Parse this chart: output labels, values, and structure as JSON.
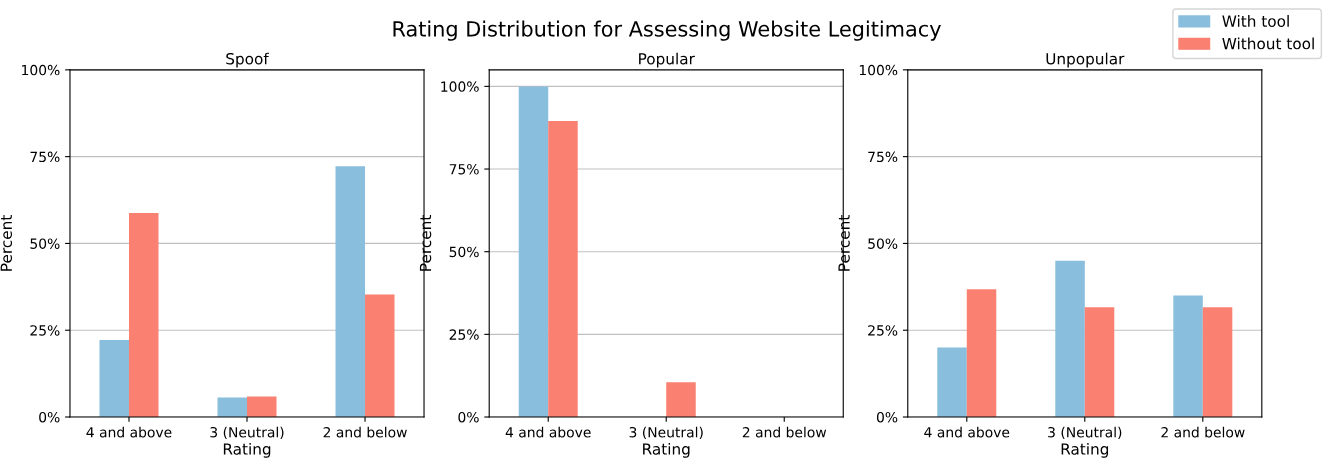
{
  "chart_data": [
    {
      "type": "bar",
      "title": "Spoof",
      "xlabel": "Rating",
      "ylabel": "Percent",
      "annotations": [
        "Rating Distribution for Assessing Website Legitimacy"
      ],
      "legend": "top right",
      "grid": "y",
      "categories": [
        "4 and above",
        "3 (Neutral)",
        "2 and below"
      ],
      "series": [
        {
          "name": "With tool",
          "color": "#89bedc",
          "values": [
            22.2,
            5.6,
            72.2
          ]
        },
        {
          "name": "Without tool",
          "color": "#fa8072",
          "values": [
            58.8,
            5.9,
            35.3
          ]
        }
      ],
      "ylim": [
        0,
        100
      ],
      "yticks": [
        {
          "value": 0,
          "label": "0%"
        },
        {
          "value": 25,
          "label": "25%"
        },
        {
          "value": 50,
          "label": "50%"
        },
        {
          "value": 75,
          "label": "75%"
        },
        {
          "value": 100,
          "label": "100%"
        }
      ]
    },
    {
      "type": "bar",
      "title": "Popular",
      "xlabel": "Rating",
      "ylabel": "Percent",
      "grid": "y",
      "categories": [
        "4 and above",
        "3 (Neutral)",
        "2 and below"
      ],
      "series": [
        {
          "color": "#89bedc",
          "values": [
            100,
            0,
            0
          ]
        },
        {
          "color": "#fa8072",
          "values": [
            89.5,
            10.5,
            0
          ]
        }
      ],
      "ylim": [
        0,
        105
      ],
      "yticks": [
        {
          "value": 0,
          "label": "0%"
        },
        {
          "value": 25,
          "label": "25%"
        },
        {
          "value": 50,
          "label": "50%"
        },
        {
          "value": 75,
          "label": "75%"
        },
        {
          "value": 100,
          "label": "100%"
        }
      ]
    },
    {
      "type": "bar",
      "title": "Unpopular",
      "xlabel": "Rating",
      "ylabel": "Percent",
      "grid": "y",
      "categories": [
        "4 and above",
        "3 (Neutral)",
        "2 and below"
      ],
      "series": [
        {
          "color": "#89bedc",
          "values": [
            20,
            45,
            35
          ]
        },
        {
          "color": "#fa8072",
          "values": [
            36.8,
            31.6,
            31.6
          ]
        }
      ],
      "ylim": [
        0,
        100
      ],
      "yticks": [
        {
          "value": 0,
          "label": "0%"
        },
        {
          "value": 25,
          "label": "25%"
        },
        {
          "value": 50,
          "label": "50%"
        },
        {
          "value": 75,
          "label": "75%"
        },
        {
          "value": 100,
          "label": "100%"
        }
      ]
    }
  ]
}
